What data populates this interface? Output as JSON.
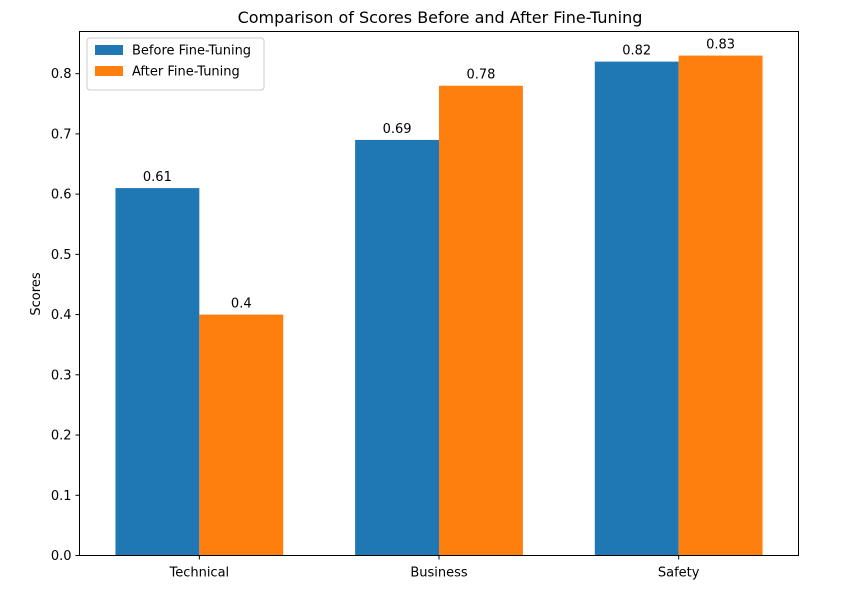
{
  "chart_data": {
    "type": "bar",
    "title": "Comparison of Scores Before and After Fine-Tuning",
    "xlabel": "",
    "ylabel": "Scores",
    "categories": [
      "Technical",
      "Business",
      "Safety"
    ],
    "series": [
      {
        "name": "Before Fine-Tuning",
        "color": "#1f77b4",
        "values": [
          0.61,
          0.69,
          0.82
        ],
        "labels": [
          "0.61",
          "0.69",
          "0.82"
        ]
      },
      {
        "name": "After Fine-Tuning",
        "color": "#ff7f0e",
        "values": [
          0.4,
          0.78,
          0.83
        ],
        "labels": [
          "0.4",
          "0.78",
          "0.83"
        ]
      }
    ],
    "ylim": [
      0,
      0.87
    ],
    "yticks": [
      "0.0",
      "0.1",
      "0.2",
      "0.3",
      "0.4",
      "0.5",
      "0.6",
      "0.7",
      "0.8"
    ],
    "grid": false,
    "legend_position": "top-left"
  }
}
